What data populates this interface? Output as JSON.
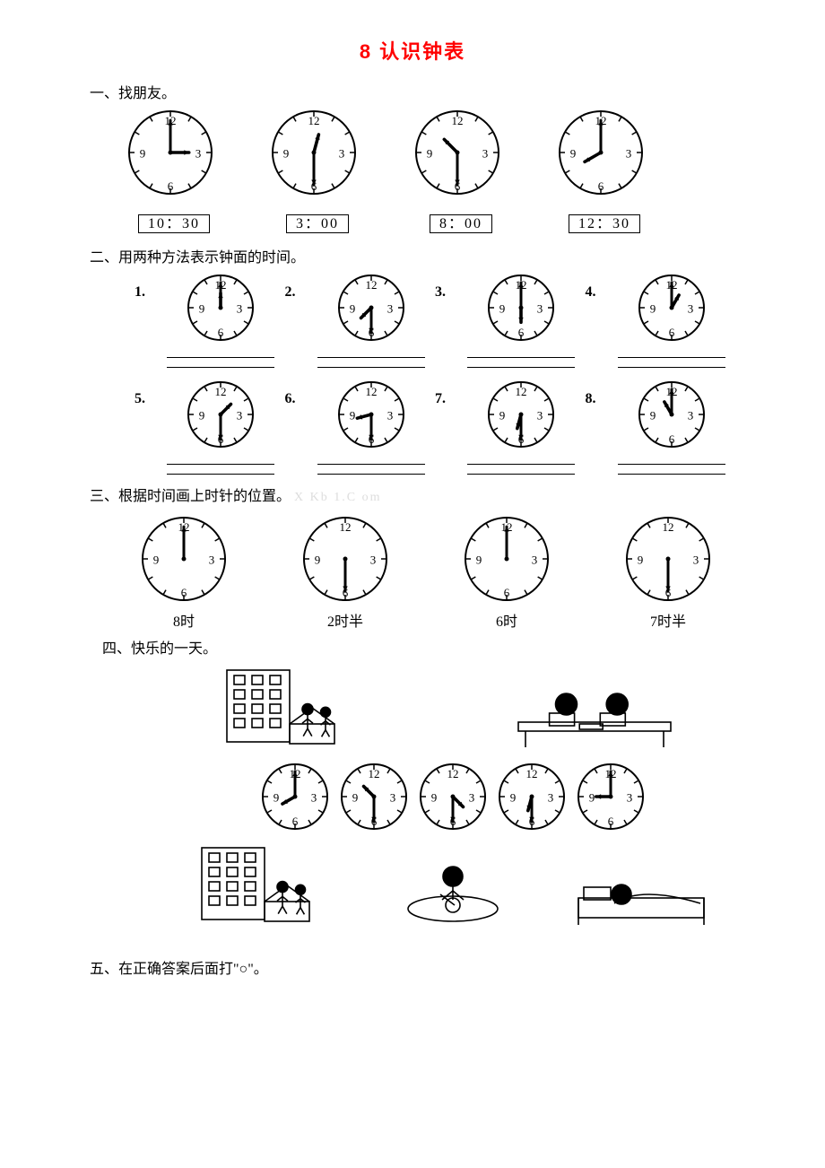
{
  "title": "8  认识钟表",
  "section1": {
    "label": "一、找朋友。",
    "clocks": [
      {
        "hour": 3,
        "minute": 0
      },
      {
        "hour": 12,
        "minute": 30
      },
      {
        "hour": 10,
        "minute": 30
      },
      {
        "hour": 8,
        "minute": 0
      }
    ],
    "times": [
      "10：30",
      "3：00",
      "8：00",
      "12：30"
    ]
  },
  "section2": {
    "label": "二、用两种方法表示钟面的时间。",
    "items": [
      {
        "num": "1.",
        "hour": 12,
        "minute": 0
      },
      {
        "num": "2.",
        "hour": 7,
        "minute": 30
      },
      {
        "num": "3.",
        "hour": 6,
        "minute": 0
      },
      {
        "num": "4.",
        "hour": 1,
        "minute": 0
      },
      {
        "num": "5.",
        "hour": 1,
        "minute": 30
      },
      {
        "num": "6.",
        "hour": 8,
        "minute": 30
      },
      {
        "num": "7.",
        "hour": 6,
        "minute": 30
      },
      {
        "num": "8.",
        "hour": 11,
        "minute": 0
      }
    ]
  },
  "section3": {
    "label_prefix": "三、根据时间画上时针的位置。",
    "watermark": "X Kb 1.C om",
    "items": [
      {
        "label": "8时",
        "minute": 0
      },
      {
        "label": "2时半",
        "minute": 30
      },
      {
        "label": "6时",
        "minute": 0
      },
      {
        "label": "7时半",
        "minute": 30
      }
    ]
  },
  "section4": {
    "label": "四、快乐的一天。",
    "scenes_top": [
      {
        "kind": "school-arrive"
      },
      {
        "kind": "study-desk"
      }
    ],
    "clocks": [
      {
        "hour": 8,
        "minute": 0
      },
      {
        "hour": 10,
        "minute": 30
      },
      {
        "hour": 4,
        "minute": 30
      },
      {
        "hour": 6,
        "minute": 30
      },
      {
        "hour": 9,
        "minute": 0
      }
    ],
    "scenes_bottom": [
      {
        "kind": "school-leave"
      },
      {
        "kind": "dinner"
      },
      {
        "kind": "sleep"
      }
    ]
  },
  "section5": {
    "label": "五、在正确答案后面打\"○\"。"
  },
  "clock_style": {
    "radius_large": 46,
    "radius_med": 40,
    "radius_small": 36,
    "stroke": "#000",
    "stroke_w": 2,
    "numbers": {
      "12": "12",
      "3": "3",
      "6": "6",
      "9": "9"
    },
    "num_font": 13,
    "tick_len": 6,
    "hour_hand_len_ratio": 0.45,
    "minute_hand_len_ratio": 0.78,
    "hand_stroke_w": 3
  }
}
